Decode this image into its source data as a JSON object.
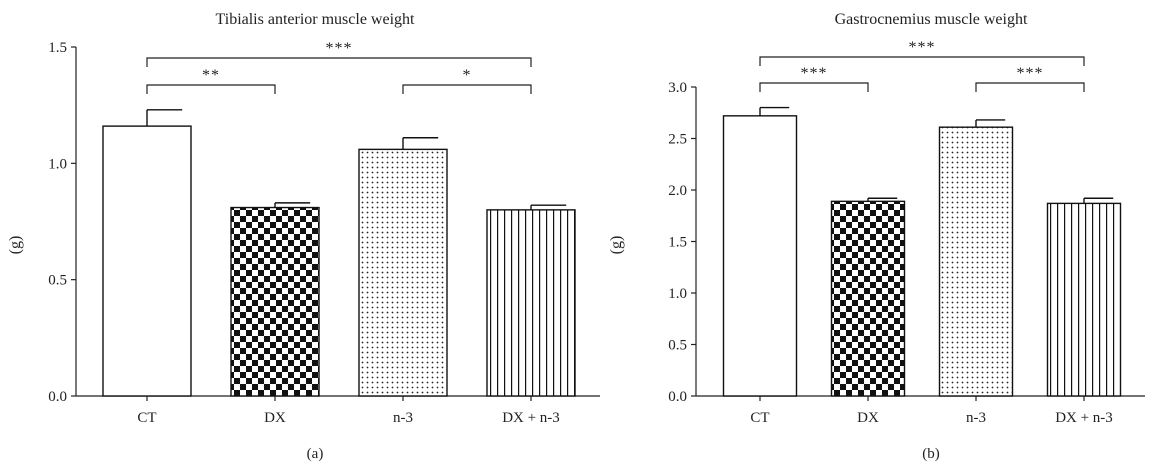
{
  "chart_data": [
    {
      "type": "bar",
      "title": "Tibialis anterior muscle weight",
      "ylabel": "(g)",
      "xlabel": "",
      "panel_label": "(a)",
      "categories": [
        "CT",
        "DX",
        "n-3",
        "DX + n-3"
      ],
      "values": [
        1.16,
        0.81,
        1.06,
        0.8
      ],
      "errors": [
        0.07,
        0.02,
        0.05,
        0.02
      ],
      "ylim": [
        0,
        1.5
      ],
      "yticks": [
        "0.0",
        "0.5",
        "1.0",
        "1.5"
      ],
      "bar_patterns": [
        "white",
        "checker",
        "dots",
        "vlines"
      ],
      "significance": [
        {
          "from": "CT",
          "to": "DX + n-3",
          "label": "***"
        },
        {
          "from": "CT",
          "to": "DX",
          "label": "**"
        },
        {
          "from": "n-3",
          "to": "DX + n-3",
          "label": "*"
        }
      ]
    },
    {
      "type": "bar",
      "title": "Gastrocnemius muscle weight",
      "ylabel": "(g)",
      "xlabel": "",
      "panel_label": "(b)",
      "categories": [
        "CT",
        "DX",
        "n-3",
        "DX + n-3"
      ],
      "values": [
        2.72,
        1.89,
        2.61,
        1.87
      ],
      "errors": [
        0.08,
        0.03,
        0.07,
        0.05
      ],
      "ylim": [
        0,
        3.0
      ],
      "yticks": [
        "0.0",
        "0.5",
        "1.0",
        "1.5",
        "2.0",
        "2.5",
        "3.0"
      ],
      "bar_patterns": [
        "white",
        "checker",
        "dots",
        "vlines"
      ],
      "significance": [
        {
          "from": "CT",
          "to": "DX + n-3",
          "label": "***"
        },
        {
          "from": "CT",
          "to": "DX",
          "label": "***"
        },
        {
          "from": "n-3",
          "to": "DX + n-3",
          "label": "***"
        }
      ]
    }
  ]
}
